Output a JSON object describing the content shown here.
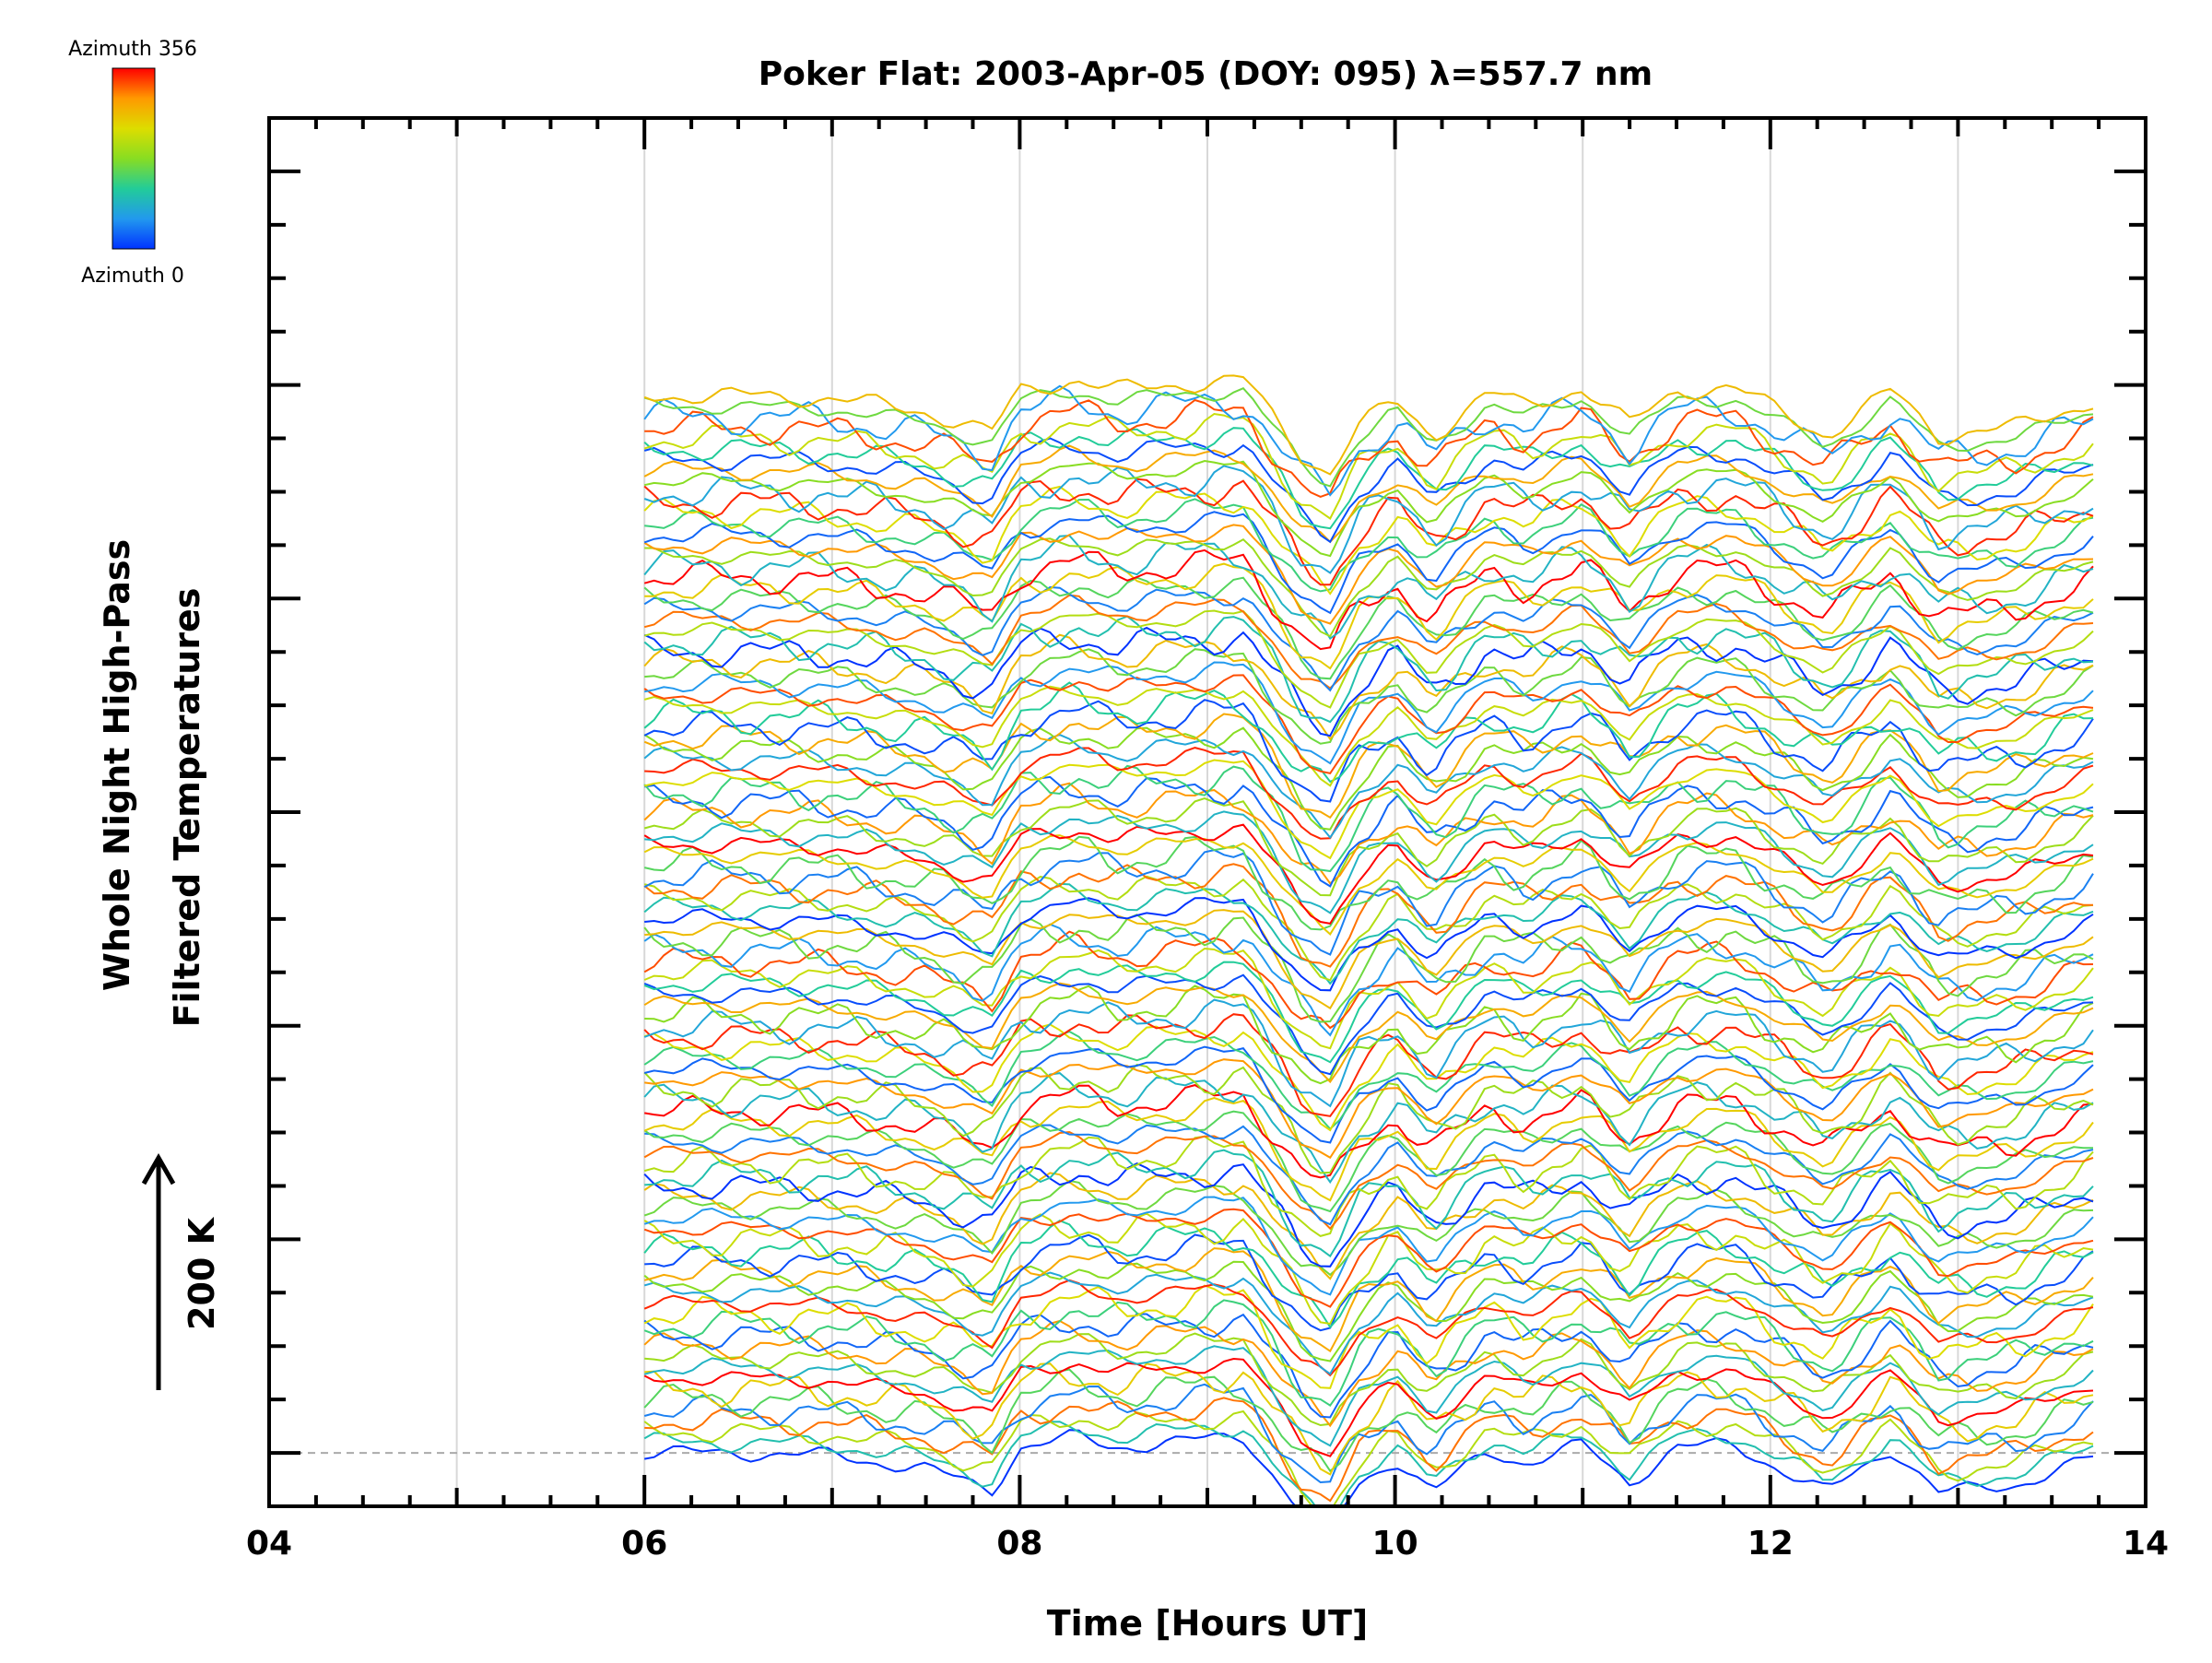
{
  "chart_data": {
    "type": "line",
    "title": "Poker Flat: 2003-Apr-05 (DOY: 095) λ=557.7 nm",
    "xlabel": "Time [Hours UT]",
    "ylabel_line1": "Whole Night High-Pass",
    "ylabel_line2": "Filtered Temperatures",
    "scale_label": "200 K",
    "colorbar": {
      "top_label": "Azimuth 356",
      "bottom_label": "Azimuth 0",
      "colors": [
        "#ff0000",
        "#ff9900",
        "#dddd00",
        "#88dd22",
        "#22cc99",
        "#2299ee",
        "#0033ff"
      ]
    },
    "xlim": [
      4,
      14
    ],
    "x_ticks": [
      "04",
      "06",
      "08",
      "10",
      "12",
      "14"
    ],
    "x_tick_values": [
      4,
      6,
      8,
      10,
      12,
      14
    ],
    "x_gridlines": [
      5,
      6,
      7,
      8,
      9,
      10,
      11,
      12,
      13
    ],
    "y_range_K": [
      -200,
      5000
    ],
    "y_ticks_K": [
      0,
      200,
      400,
      600,
      800,
      1000,
      1200,
      1400,
      1600,
      1800,
      2000,
      2200,
      2400,
      2600,
      2800,
      3000,
      3200,
      3400,
      3600,
      3800,
      4000,
      4200,
      4400,
      4600,
      4800
    ],
    "baseline_K": 0,
    "series_start_hour": 6.0,
    "series_end_hour": 13.72,
    "series_count": 100,
    "series_spacing_K": 40,
    "series_template": {
      "x": [
        6.0,
        6.5,
        7.0,
        7.5,
        7.85,
        8.0,
        8.3,
        8.5,
        8.8,
        9.2,
        9.5,
        9.65,
        9.8,
        10.0,
        10.2,
        10.5,
        10.7,
        11.0,
        11.25,
        11.5,
        11.8,
        12.0,
        12.3,
        12.65,
        12.9,
        13.3,
        13.72
      ],
      "y_K": [
        0,
        0,
        -10,
        -60,
        -140,
        20,
        60,
        20,
        40,
        60,
        -220,
        -290,
        -120,
        -20,
        -150,
        10,
        -40,
        30,
        -110,
        20,
        30,
        -40,
        -150,
        20,
        -150,
        -120,
        -20
      ]
    }
  }
}
